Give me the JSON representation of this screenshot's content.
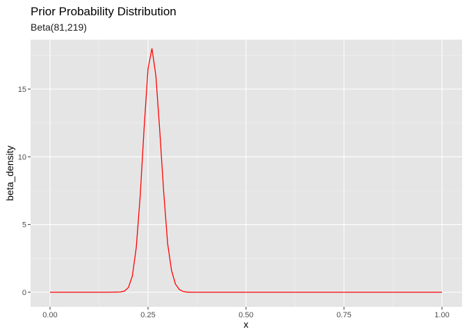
{
  "chart_data": {
    "type": "line",
    "title": "Prior Probability Distribution",
    "subtitle": "Beta(81,219)",
    "xlabel": "x",
    "ylabel": "beta_density",
    "xlim": [
      0,
      1
    ],
    "ylim": [
      0,
      18
    ],
    "x_ticks": [
      0,
      0.25,
      0.5,
      0.75,
      1
    ],
    "x_tick_labels": [
      "0.00",
      "0.25",
      "0.50",
      "0.75",
      "1.00"
    ],
    "y_ticks": [
      0,
      5,
      10,
      15
    ],
    "y_tick_labels": [
      "0",
      "5",
      "10",
      "15"
    ],
    "grid": true,
    "legend": "none",
    "colors": {
      "panel": "#e5e5e5",
      "grid_major": "#ffffff",
      "line": "#ff0000"
    },
    "series": [
      {
        "x": [
          0,
          0.05,
          0.1,
          0.15,
          0.18,
          0.19,
          0.2,
          0.21,
          0.22,
          0.23,
          0.24,
          0.25,
          0.26,
          0.27,
          0.28,
          0.29,
          0.3,
          0.31,
          0.32,
          0.33,
          0.34,
          0.35,
          0.36,
          0.4,
          0.5,
          0.6,
          0.7,
          0.8,
          0.9,
          1.0
        ],
        "values": [
          0,
          0,
          0,
          0,
          0.02,
          0.09,
          0.35,
          1.2,
          3.3,
          7.1,
          12.1,
          16.5,
          18.0,
          16.0,
          11.9,
          7.4,
          3.6,
          1.6,
          0.6,
          0.2,
          0.05,
          0.01,
          0,
          0,
          0,
          0,
          0,
          0,
          0,
          0
        ]
      }
    ]
  }
}
